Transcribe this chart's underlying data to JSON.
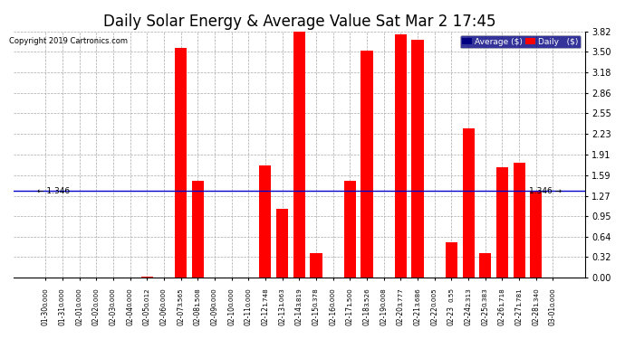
{
  "title": "Daily Solar Energy & Average Value Sat Mar 2 17:45",
  "copyright": "Copyright 2019 Cartronics.com",
  "categories": [
    "01-30",
    "01-31",
    "02-01",
    "02-02",
    "02-03",
    "02-04",
    "02-05",
    "02-06",
    "02-07",
    "02-08",
    "02-09",
    "02-10",
    "02-11",
    "02-12",
    "02-13",
    "02-14",
    "02-15",
    "02-16",
    "02-17",
    "02-18",
    "02-19",
    "02-20",
    "02-21",
    "02-22",
    "02-23",
    "02-24",
    "02-25",
    "02-26",
    "02-27",
    "02-28",
    "03-01"
  ],
  "values": [
    0.0,
    0.0,
    0.0,
    0.0,
    0.0,
    0.0,
    0.012,
    0.0,
    3.565,
    1.508,
    0.0,
    0.0,
    0.0,
    1.748,
    1.063,
    3.819,
    0.378,
    0.0,
    1.5,
    3.526,
    0.008,
    3.777,
    3.686,
    0.005,
    0.55,
    2.313,
    0.383,
    1.718,
    1.781,
    1.34,
    0.0
  ],
  "value_labels": [
    "0.000",
    "0.000",
    "0.000",
    "0.000",
    "0.000",
    "0.000",
    "0.012",
    "0.000",
    "3.565",
    "1.508",
    "0.000",
    "0.000",
    "0.000",
    "1.748",
    "1.063",
    "3.819",
    "0.378",
    "0.000",
    "1.500",
    "3.526",
    "0.008",
    "3.777",
    "3.686",
    "0.005",
    "0.55",
    "2.313",
    "0.383",
    "1.718",
    "1.781",
    "1.340",
    "0.000"
  ],
  "average": 1.346,
  "bar_color": "#ff0000",
  "average_color": "#0000cc",
  "ylim": [
    0.0,
    3.82
  ],
  "yticks": [
    0.0,
    0.32,
    0.64,
    0.95,
    1.27,
    1.59,
    1.91,
    2.23,
    2.55,
    2.86,
    3.18,
    3.5,
    3.82
  ],
  "bg_color": "#ffffff",
  "grid_color": "#aaaaaa",
  "title_fontsize": 12,
  "legend_avg_color": "#000080",
  "legend_daily_color": "#ff0000"
}
